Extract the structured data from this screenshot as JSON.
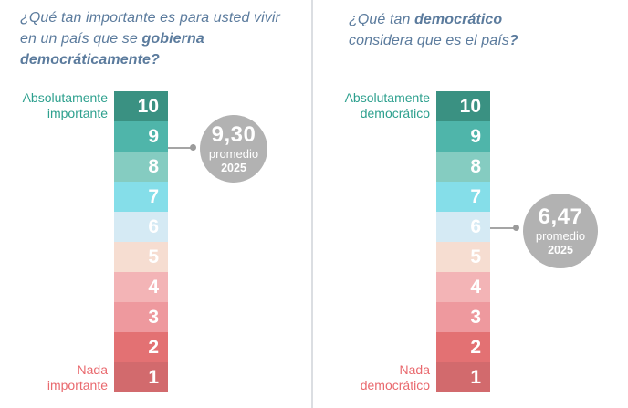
{
  "accent_colors": {
    "title_text": "#5b7b9d",
    "positive_label": "#2da08e",
    "negative_label": "#e9696e",
    "average_circle": "#b2b2b2",
    "connector": "#a5a5a5",
    "divider": "#dbdee2",
    "scale_number_text": "#ffffff"
  },
  "scale": {
    "items": [
      {
        "label": "10",
        "color": "#3a9182"
      },
      {
        "label": "9",
        "color": "#4fb5aa"
      },
      {
        "label": "8",
        "color": "#85ccc1"
      },
      {
        "label": "7",
        "color": "#85dee9"
      },
      {
        "label": "6",
        "color": "#d5eaf4"
      },
      {
        "label": "5",
        "color": "#f6ddd1"
      },
      {
        "label": "4",
        "color": "#f3b4b6"
      },
      {
        "label": "3",
        "color": "#ee999e"
      },
      {
        "label": "2",
        "color": "#e37173"
      },
      {
        "label": "1",
        "color": "#d26a6d"
      }
    ]
  },
  "panels": {
    "importance": {
      "title": {
        "normal_1": "¿Qué tan importante es para usted vivir en un país que se ",
        "bold_1": "gobierna democráticamente?",
        "normal_2": "",
        "bold_2": ""
      },
      "top_label": {
        "line1": "Absolutamente",
        "line2": "importante"
      },
      "bottom_label": {
        "line1": "Nada",
        "line2": "importante"
      },
      "average": {
        "value": "9,30",
        "caption": "promedio",
        "year": "2025"
      }
    },
    "democracy": {
      "title": {
        "normal_1": "¿Qué tan ",
        "bold_1": "democrático",
        "normal_2": " considera que es el país",
        "bold_2": "?"
      },
      "top_label": {
        "line1": "Absolutamente",
        "line2": "democrático"
      },
      "bottom_label": {
        "line1": "Nada",
        "line2": "democrático"
      },
      "average": {
        "value": "6,47",
        "caption": "promedio",
        "year": "2025"
      }
    }
  },
  "chart_data": [
    {
      "type": "bar",
      "title": "¿Qué tan importante es para usted vivir en un país que se gobierna democráticamente?",
      "categories": [
        10,
        9,
        8,
        7,
        6,
        5,
        4,
        3,
        2,
        1
      ],
      "scale_max_label": "Absolutamente importante",
      "scale_min_label": "Nada importante",
      "average_2025": 9.3,
      "average_display": "9,30 promedio 2025",
      "highlighted_category": 9,
      "legend_position": "none",
      "grid": false
    },
    {
      "type": "bar",
      "title": "¿Qué tan democrático considera que es el país?",
      "categories": [
        10,
        9,
        8,
        7,
        6,
        5,
        4,
        3,
        2,
        1
      ],
      "scale_max_label": "Absolutamente democrático",
      "scale_min_label": "Nada democrático",
      "average_2025": 6.47,
      "average_display": "6,47 promedio 2025",
      "highlighted_category": 6,
      "legend_position": "none",
      "grid": false
    }
  ]
}
